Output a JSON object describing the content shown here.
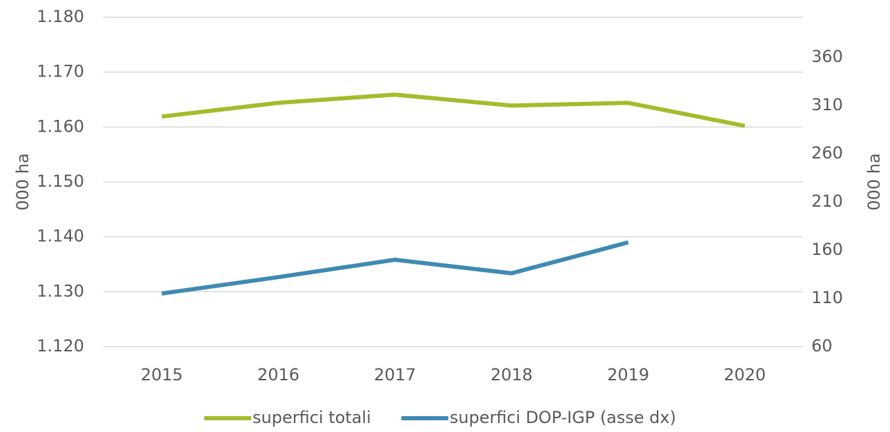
{
  "chart_data": {
    "type": "line",
    "categories": [
      "2015",
      "2016",
      "2017",
      "2018",
      "2019",
      "2020"
    ],
    "series": [
      {
        "name": "superfici totali",
        "color": "#a4bc2b",
        "values": [
          1161.9,
          1164.4,
          1165.9,
          1163.9,
          1164.4,
          1160.2
        ]
      },
      {
        "name": "superfici DOP-IGP (asse dx)",
        "color": "#3f8ab2",
        "axis": "y2",
        "values": [
          115,
          132,
          150,
          136,
          168,
          null
        ]
      }
    ],
    "ylabel": "000 ha",
    "y2label": "000 ha",
    "ylim": [
      1120,
      1180
    ],
    "yticks": [
      {
        "value": 1120,
        "label": "1.120"
      },
      {
        "value": 1130,
        "label": "1.130"
      },
      {
        "value": 1140,
        "label": "1.140"
      },
      {
        "value": 1150,
        "label": "1.150"
      },
      {
        "value": 1160,
        "label": "1.160"
      },
      {
        "value": 1170,
        "label": "1.170"
      },
      {
        "value": 1180,
        "label": "1.180"
      }
    ],
    "y2lim": [
      60,
      401.4
    ],
    "y2ticks": [
      60,
      110,
      160,
      210,
      260,
      310,
      360
    ],
    "grid": true,
    "legend": "bottom"
  }
}
